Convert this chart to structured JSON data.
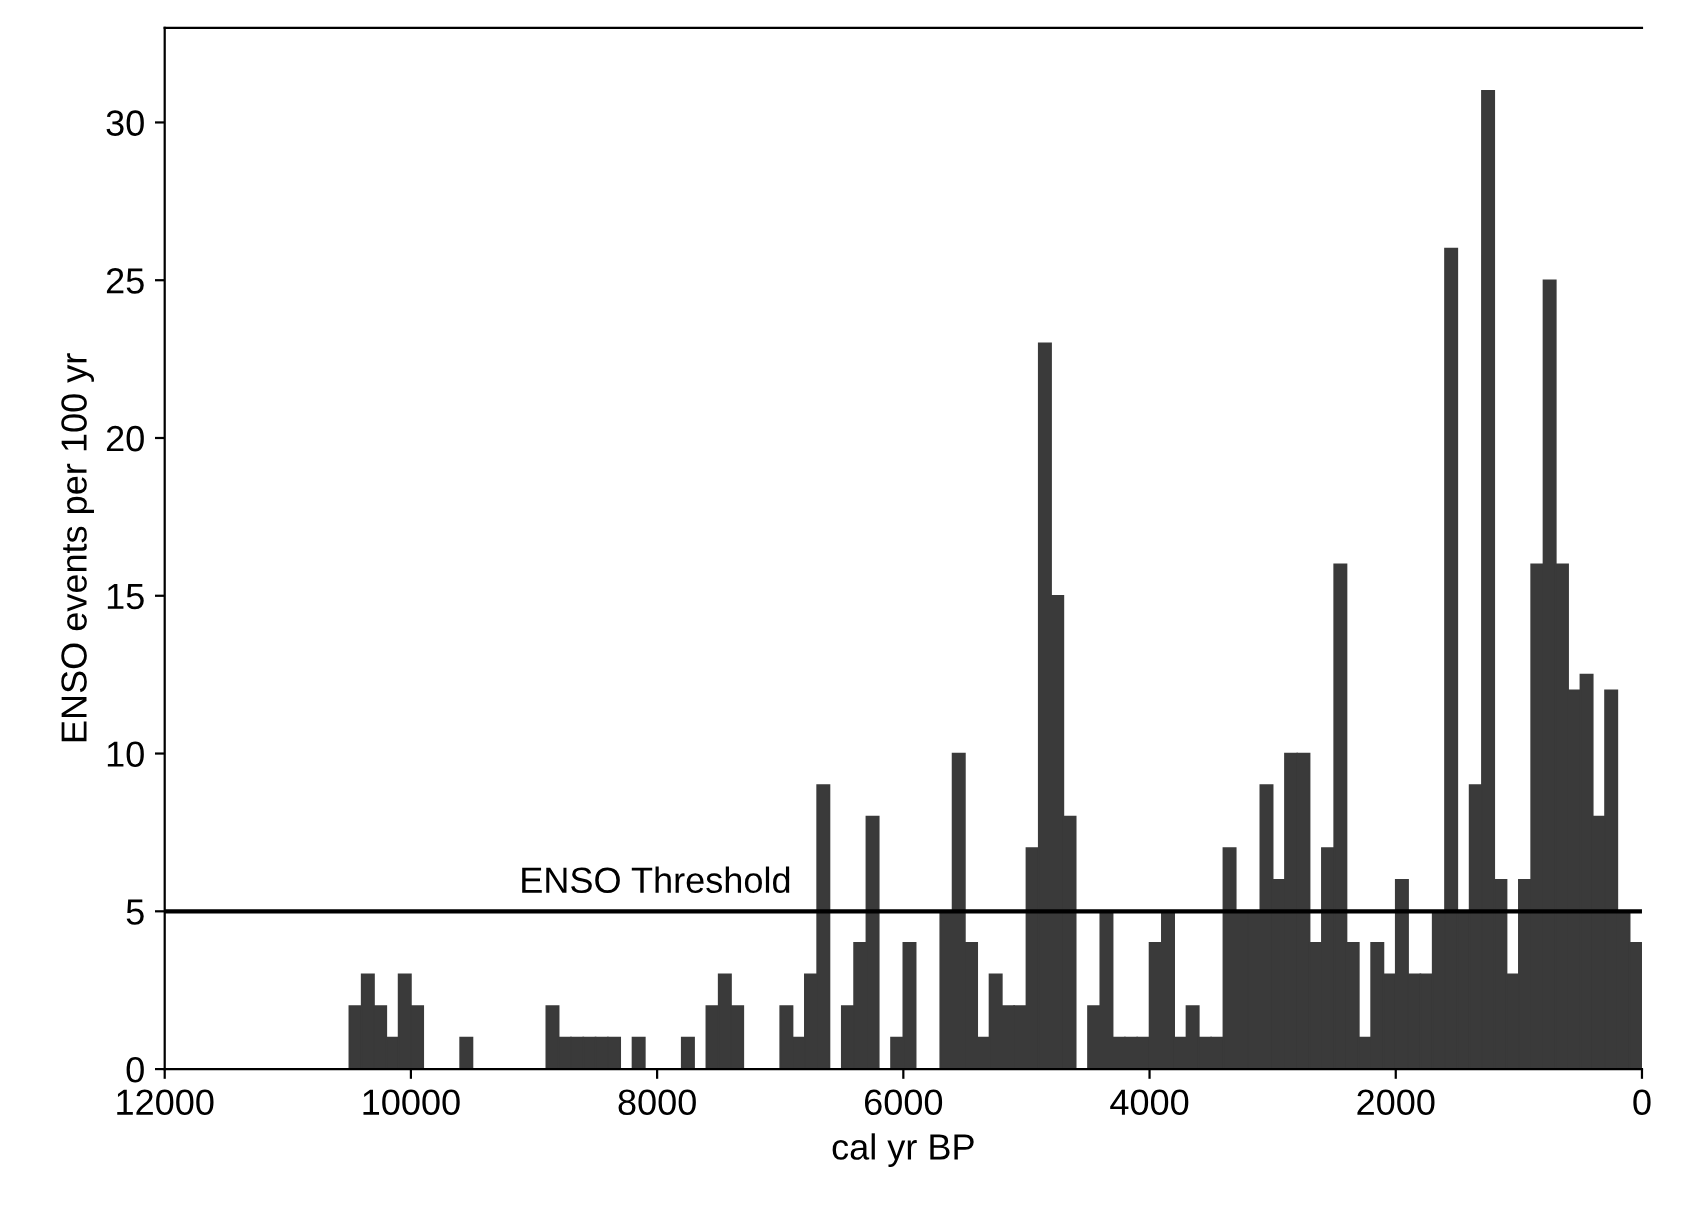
{
  "chart_data": {
    "type": "histogram",
    "xlabel": "cal yr BP",
    "ylabel": "ENSO events per 100 yr",
    "bins": [
      12000,
      11900,
      11800,
      11700,
      11600,
      11500,
      11400,
      11300,
      11200,
      11100,
      11000,
      10900,
      10800,
      10700,
      10600,
      10500,
      10400,
      10300,
      10200,
      10100,
      10000,
      9900,
      9800,
      9700,
      9600,
      9500,
      9400,
      9300,
      9200,
      9100,
      9000,
      8900,
      8800,
      8700,
      8600,
      8500,
      8400,
      8300,
      8200,
      8100,
      8000,
      7900,
      7800,
      7700,
      7600,
      7500,
      7400,
      7300,
      7200,
      7100,
      7000,
      6900,
      6800,
      6700,
      6600,
      6500,
      6400,
      6300,
      6200,
      6100,
      6000,
      5900,
      5800,
      5700,
      5600,
      5500,
      5400,
      5300,
      5200,
      5100,
      5000,
      4900,
      4800,
      4700,
      4600,
      4500,
      4400,
      4300,
      4200,
      4100,
      4000,
      3900,
      3800,
      3700,
      3600,
      3500,
      3400,
      3300,
      3200,
      3100,
      3000,
      2900,
      2800,
      2700,
      2600,
      2500,
      2400,
      2300,
      2200,
      2100,
      2000,
      1900,
      1800,
      1700,
      1600,
      1500,
      1400,
      1300,
      1200,
      1100,
      1000,
      900,
      800,
      700,
      600,
      500,
      400,
      300,
      200,
      100,
      0
    ],
    "values": [
      0,
      0,
      0,
      0,
      0,
      0,
      0,
      0,
      0,
      0,
      0,
      0,
      0,
      0,
      0,
      2,
      3,
      2,
      1,
      3,
      2,
      0,
      0,
      0,
      1,
      0,
      0,
      0,
      0,
      0,
      0,
      2,
      1,
      1,
      1,
      1,
      1,
      0,
      1,
      0,
      0,
      0,
      1,
      0,
      2,
      3,
      2,
      0,
      0,
      0,
      2,
      1,
      3,
      9,
      0,
      2,
      4,
      8,
      0,
      1,
      4,
      0,
      0,
      5,
      10,
      4,
      1,
      3,
      2,
      2,
      7,
      23,
      15,
      8,
      0,
      2,
      5,
      1,
      1,
      1,
      4,
      5,
      1,
      2,
      1,
      1,
      7,
      5,
      5,
      9,
      6,
      10,
      10,
      4,
      7,
      16,
      4,
      1,
      4,
      3,
      6,
      3,
      3,
      5,
      26,
      5,
      9,
      31,
      6,
      3,
      6,
      16,
      25,
      16,
      12,
      12.5,
      8,
      12,
      5,
      4
    ],
    "color": "#3a3a3a",
    "xlim": [
      12000,
      0
    ],
    "ylim": [
      0,
      33
    ],
    "xticks": [
      12000,
      10000,
      8000,
      6000,
      4000,
      2000,
      0
    ],
    "yticks": [
      0,
      5,
      10,
      15,
      20,
      25,
      30
    ],
    "ref_lines": [
      {
        "axis": "y",
        "value": 5,
        "label": "ENSO Threshold",
        "color": "#000000"
      }
    ],
    "grid": false,
    "legend": false
  }
}
